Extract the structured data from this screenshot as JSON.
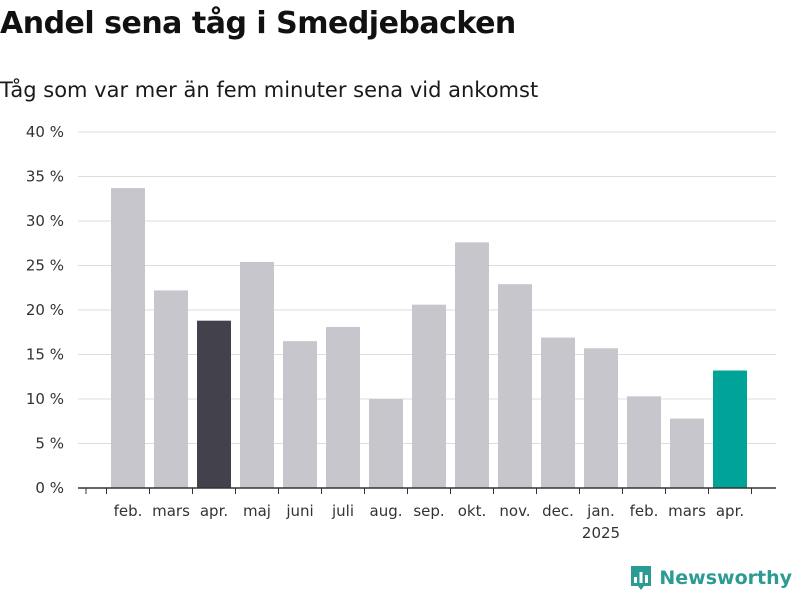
{
  "title": "Andel sena tåg i Smedjebacken",
  "subtitle": "Tåg som var mer än fem minuter sena vid ankomst",
  "brand": {
    "name": "Newsworthy",
    "icon": "newsworthy-logo-icon",
    "color": "#2b9b93"
  },
  "colors": {
    "default_bar": "#c7c6cc",
    "highlight_prev_year": "#43414c",
    "highlight_current": "#00a398",
    "grid": "#dddddd",
    "axis": "#333333"
  },
  "chart_data": {
    "type": "bar",
    "title": "Andel sena tåg i Smedjebacken",
    "subtitle": "Tåg som var mer än fem minuter sena vid ankomst",
    "xlabel": "",
    "ylabel": "",
    "ylim": [
      0,
      40
    ],
    "yticks": [
      0,
      5,
      10,
      15,
      20,
      25,
      30,
      35,
      40
    ],
    "ytick_labels": [
      "0 %",
      "5 %",
      "10 %",
      "15 %",
      "20 %",
      "25 %",
      "30 %",
      "35 %",
      "40 %"
    ],
    "grid": true,
    "categories": [
      "feb.",
      "mars",
      "apr.",
      "maj",
      "juni",
      "juli",
      "aug.",
      "sep.",
      "okt.",
      "nov.",
      "dec.",
      "jan.",
      "feb.",
      "mars",
      "apr."
    ],
    "year_labels": {
      "11": "2025"
    },
    "values": [
      33.7,
      22.2,
      18.8,
      25.4,
      16.5,
      18.1,
      10.0,
      20.6,
      27.6,
      22.9,
      16.9,
      15.7,
      10.3,
      7.8,
      13.2
    ],
    "highlight": {
      "2": "highlight_prev_year",
      "14": "highlight_current"
    }
  }
}
